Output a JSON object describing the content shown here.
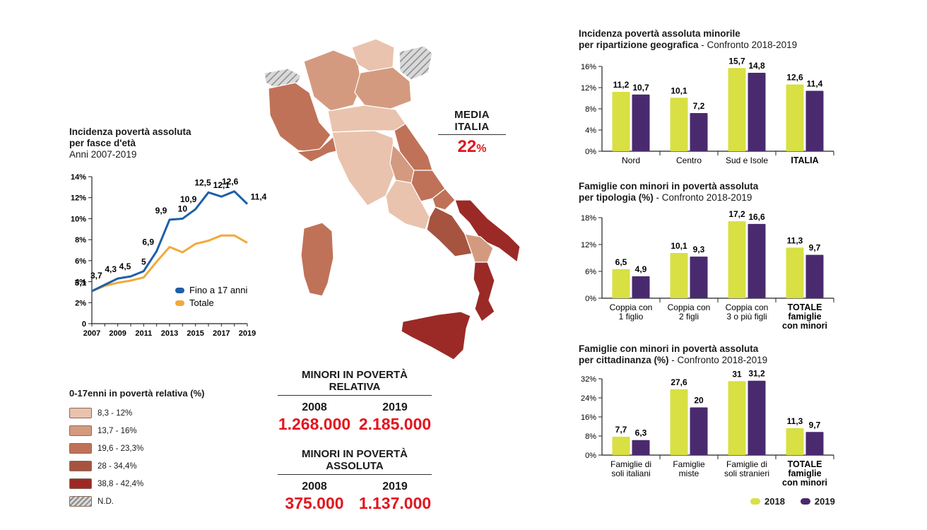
{
  "colors": {
    "yellow": "#d8e043",
    "purple": "#4a2a6e",
    "blue": "#1f5fa8",
    "orange": "#f2a93b",
    "red": "#e3151f",
    "map_scale": [
      "#e9c3ad",
      "#d49a80",
      "#c07258",
      "#a65440",
      "#9b2a26"
    ]
  },
  "media": {
    "label": "MEDIA ITALIA",
    "value": "22",
    "unit": "%"
  },
  "relativa": {
    "title": "MINORI IN POVERTÀ RELATIVA",
    "y1": "2008",
    "v1": "1.268.000",
    "y2": "2019",
    "v2": "2.185.000"
  },
  "assoluta": {
    "title": "MINORI IN POVERTÀ ASSOLUTA",
    "y1": "2008",
    "v1": "375.000",
    "y2": "2019",
    "v2": "1.137.000"
  },
  "map_legend": {
    "title": "0-17enni in povertà relativa (%)",
    "items": [
      "8,3 - 12%",
      "13,7 - 16%",
      "19,6 - 23,3%",
      "28 - 34,4%",
      "38,8 - 42,4%",
      "N.D."
    ]
  },
  "bar_legend": {
    "a": "2018",
    "b": "2019"
  },
  "chart_data": [
    {
      "type": "line",
      "title": "Incidenza povertà assoluta",
      "title2": "per fasce d'età",
      "subtitle": "Anni 2007-2019",
      "x": [
        2007,
        2008,
        2009,
        2010,
        2011,
        2012,
        2013,
        2014,
        2015,
        2016,
        2017,
        2018,
        2019
      ],
      "xticks": [
        "2007",
        "2009",
        "2011",
        "2013",
        "2015",
        "2017",
        "2019"
      ],
      "ylim": [
        0,
        14
      ],
      "yticks": [
        "0",
        "2%",
        "4%",
        "6%",
        "8%",
        "10%",
        "12%",
        "14%"
      ],
      "series": [
        {
          "name": "Fino a 17 anni",
          "values": [
            3.1,
            3.7,
            4.3,
            4.5,
            5,
            6.9,
            9.9,
            10,
            10.9,
            12.5,
            12.1,
            12.6,
            11.4
          ],
          "labels": [
            "3,1",
            "3,7",
            "4,3",
            "4,5",
            "5",
            "6,9",
            "9,9",
            "10",
            "10,9",
            "12,5",
            "12,1",
            "12,6",
            "11,4"
          ]
        },
        {
          "name": "Totale",
          "values": [
            3.1,
            3.6,
            3.9,
            4.1,
            4.4,
            5.9,
            7.3,
            6.8,
            7.6,
            7.9,
            8.4,
            8.4,
            7.7
          ]
        }
      ]
    },
    {
      "type": "bar",
      "title": "Incidenza povertà assoluta minorile",
      "title2": "per ripartizione geografica",
      "title2b": " - Confronto 2018-2019",
      "categories": [
        [
          "Nord"
        ],
        [
          "Centro"
        ],
        [
          "Sud e Isole"
        ],
        [
          "ITALIA"
        ]
      ],
      "bold_last": true,
      "ylim": [
        0,
        16
      ],
      "yticks": [
        "0%",
        "4%",
        "8%",
        "12%",
        "16%"
      ],
      "series": [
        {
          "name": "2018",
          "values": [
            11.2,
            10.1,
            15.7,
            12.6
          ],
          "labels": [
            "11,2",
            "10,1",
            "15,7",
            "12,6"
          ]
        },
        {
          "name": "2019",
          "values": [
            10.7,
            7.2,
            14.8,
            11.4
          ],
          "labels": [
            "10,7",
            "7,2",
            "14,8",
            "11,4"
          ]
        }
      ]
    },
    {
      "type": "bar",
      "title": "Famiglie con minori in povertà assoluta",
      "title2": "per tipologia (%)",
      "title2b": " - Confronto 2018-2019",
      "categories": [
        [
          "Coppia con",
          "1 figlio"
        ],
        [
          "Coppia con",
          "2 figli"
        ],
        [
          "Coppia con",
          "3 o più figli"
        ],
        [
          "TOTALE",
          "famiglie",
          "con minori"
        ]
      ],
      "bold_last": true,
      "ylim": [
        0,
        18
      ],
      "yticks": [
        "0%",
        "6%",
        "12%",
        "18%"
      ],
      "series": [
        {
          "name": "2018",
          "values": [
            6.5,
            10.1,
            17.2,
            11.3
          ],
          "labels": [
            "6,5",
            "10,1",
            "17,2",
            "11,3"
          ]
        },
        {
          "name": "2019",
          "values": [
            4.9,
            9.3,
            16.6,
            9.7
          ],
          "labels": [
            "4,9",
            "9,3",
            "16,6",
            "9,7"
          ]
        }
      ]
    },
    {
      "type": "bar",
      "title": "Famiglie con minori in povertà assoluta",
      "title2": "per cittadinanza (%)",
      "title2b": " - Confronto 2018-2019",
      "categories": [
        [
          "Famiglie di",
          "soli italiani"
        ],
        [
          "Famiglie",
          "miste"
        ],
        [
          "Famiglie di",
          "soli stranieri"
        ],
        [
          "TOTALE",
          "famiglie",
          "con minori"
        ]
      ],
      "bold_last": true,
      "ylim": [
        0,
        32
      ],
      "yticks": [
        "0%",
        "8%",
        "16%",
        "24%",
        "32%"
      ],
      "series": [
        {
          "name": "2018",
          "values": [
            7.7,
            27.6,
            31,
            11.3
          ],
          "labels": [
            "7,7",
            "27,6",
            "31",
            "11,3"
          ]
        },
        {
          "name": "2019",
          "values": [
            6.3,
            20,
            31.2,
            9.7
          ],
          "labels": [
            "6,3",
            "20",
            "31,2",
            "9,7"
          ]
        }
      ]
    }
  ]
}
